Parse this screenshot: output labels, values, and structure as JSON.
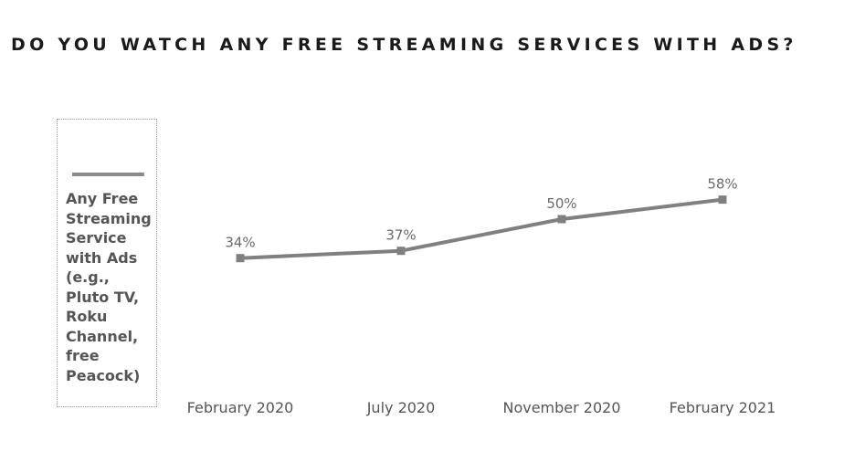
{
  "chart_data": {
    "type": "line",
    "title": "DO YOU WATCH ANY FREE STREAMING SERVICES WITH ADS?",
    "categories": [
      "February 2020",
      "July 2020",
      "November 2020",
      "February 2021"
    ],
    "series": [
      {
        "name": "Any Free Streaming Service with Ads (e.g., Pluto TV, Roku Channel, free Peacock)",
        "legend_text": "Any Free\nStreaming\nService\nwith Ads\n(e.g.,\nPluto TV,\nRoku\nChannel,\nfree\nPeacock)",
        "values": [
          34,
          37,
          50,
          58
        ],
        "labels": [
          "34%",
          "37%",
          "50%",
          "58%"
        ],
        "color": "#808080"
      }
    ],
    "xlabel": "",
    "ylabel": "",
    "ylim": [
      0,
      100
    ],
    "grid": false,
    "legend_position": "left"
  }
}
